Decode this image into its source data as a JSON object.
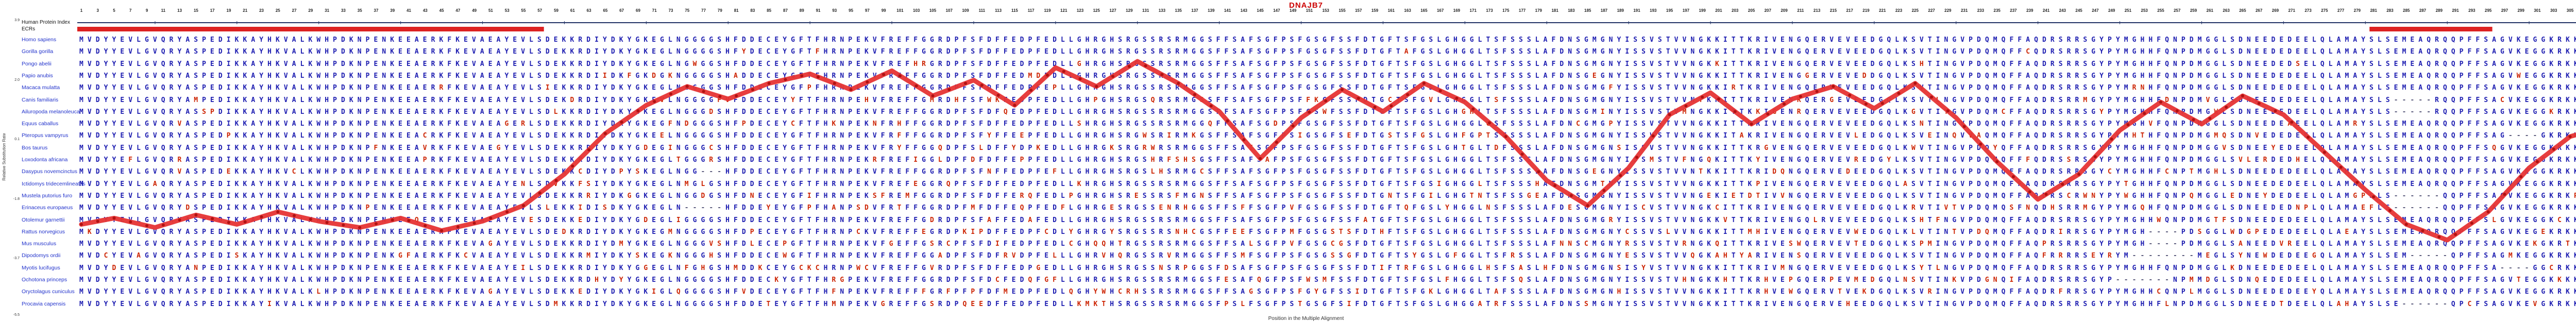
{
  "title": "DNAJB7",
  "colors": {
    "title": "#cc0000",
    "sequence": "#1b1bb0",
    "mutation": "#cc2200",
    "gap": "#555577",
    "species": "#2233cc",
    "curve": "#e63434",
    "curve_marker": "#b01212",
    "ecr": "#dd2222",
    "index_line": "#223366"
  },
  "left_panel": {
    "index_label": "Human Protein Index",
    "ecrs_label": "ECRs",
    "species": [
      {
        "name": "Homo sapiens",
        "divergence": 0,
        "gaps": []
      },
      {
        "name": "Gorilla gorilla",
        "divergence": 0.02,
        "gaps": []
      },
      {
        "name": "Pongo abelii",
        "divergence": 0.03,
        "gaps": []
      },
      {
        "name": "Papio anubis",
        "divergence": 0.05,
        "gaps": []
      },
      {
        "name": "Macaca mulatta",
        "divergence": 0.05,
        "gaps": []
      },
      {
        "name": "Canis familiaris",
        "divergence": 0.12,
        "gaps": [
          [
            284,
            288
          ]
        ]
      },
      {
        "name": "Ailuropoda melanoleuca",
        "divergence": 0.12,
        "gaps": [
          [
            284,
            288
          ]
        ]
      },
      {
        "name": "Equus caballus",
        "divergence": 0.11,
        "gaps": []
      },
      {
        "name": "Pteropus vampyrus",
        "divergence": 0.14,
        "gaps": [
          [
            298,
            301
          ]
        ]
      },
      {
        "name": "Bos taurus",
        "divergence": 0.14,
        "gaps": []
      },
      {
        "name": "Loxodonta africana",
        "divergence": 0.15,
        "gaps": []
      },
      {
        "name": "Dasypus novemcinctus",
        "divergence": 0.16,
        "gaps": [
          [
            77,
            79
          ]
        ]
      },
      {
        "name": "Ictidomys tridecemlineatus",
        "divergence": 0.15,
        "gaps": []
      },
      {
        "name": "Mustela putorius furo",
        "divergence": 0.13,
        "gaps": [
          [
            284,
            289
          ]
        ]
      },
      {
        "name": "Erinaceus europaeus",
        "divergence": 0.2,
        "gaps": [
          [
            75,
            79
          ],
          [
            284,
            289
          ]
        ]
      },
      {
        "name": "Otolemur garnettii",
        "divergence": 0.12,
        "gaps": []
      },
      {
        "name": "Rattus norvegicus",
        "divergence": 0.22,
        "gaps": [
          [
            254,
            257
          ]
        ]
      },
      {
        "name": "Mus musculus",
        "divergence": 0.22,
        "gaps": [
          [
            254,
            257
          ]
        ]
      },
      {
        "name": "Dipodomys ordii",
        "divergence": 0.2,
        "gaps": [
          [
            252,
            259
          ],
          [
            286,
            290
          ]
        ]
      },
      {
        "name": "Myotis lucifugus",
        "divergence": 0.16,
        "gaps": [
          [
            297,
            300
          ]
        ]
      },
      {
        "name": "Ochotona princeps",
        "divergence": 0.18,
        "gaps": [
          [
            250,
            256
          ]
        ]
      },
      {
        "name": "Oryctolagus cuniculus",
        "divergence": 0.15,
        "gaps": []
      },
      {
        "name": "Procavia capensis",
        "divergence": 0.16,
        "gaps": [
          [
            285,
            290
          ]
        ]
      }
    ]
  },
  "axes": {
    "y_label": "Relative Substitution Rate",
    "x_label": "Position in the Multiple Alignment",
    "y_ticks": [
      3.9,
      2.0,
      0.1,
      -1.8,
      -3.7,
      -5.5
    ],
    "x_ticks": {
      "start": 1,
      "end": 309,
      "step": 2
    }
  },
  "alignment": {
    "length": 309,
    "base_sequence": "MVDYYEVLGVQRYASPEDIKKAYHKVALKWHPDKNPENKEEAERKFKEVAEAYEVLSDEKKRDIYDKYGKEGLNGGGGSHFDDECEYGFTFHRNPEKVFREFFGGRDPFSFDFFEDPFEDLLGHRGHSRGSSRSRMGGSFFSAFSGFPSFGSGFSSFDTGFTSFGSLGHGGLTSFSSSLAFDNSGMGNYISSVSTVVNGKKITTKRIVENGQERVEVEEDGQLKSVTINGVPDQMQFFAQDRSRRSGYPYMGHHFQNPDMGGLSDNEEDEDEELQLAMAYSLSEMEAQRQQPFFSAGVKEGGKRKKANK",
    "amino_acids": "ARNDCQEGHILKMFPSTWYV"
  },
  "ecr_segments": [
    [
      1,
      57
    ],
    [
      281,
      295
    ]
  ],
  "chart_data": {
    "type": "line",
    "title": "DNAJB7",
    "xlabel": "Position in the Multiple Alignment",
    "ylabel": "Relative Substitution Rate",
    "ylim": [
      -5.5,
      3.9
    ],
    "xlim": [
      1,
      309
    ],
    "legend": null,
    "grid": false,
    "x": [
      1,
      5,
      10,
      15,
      20,
      25,
      30,
      35,
      40,
      45,
      50,
      55,
      60,
      65,
      70,
      75,
      80,
      85,
      90,
      95,
      100,
      105,
      110,
      115,
      120,
      125,
      130,
      135,
      140,
      145,
      150,
      155,
      160,
      165,
      170,
      175,
      180,
      185,
      190,
      195,
      200,
      205,
      210,
      215,
      220,
      225,
      230,
      235,
      240,
      245,
      250,
      255,
      260,
      265,
      270,
      275,
      280,
      285,
      290,
      295,
      300,
      305,
      309
    ],
    "values": [
      -2.6,
      -2.4,
      -2.7,
      -2.3,
      -2.6,
      -2.2,
      -2.5,
      -2.7,
      -2.4,
      -2.8,
      -2.5,
      -2.0,
      -1.0,
      0.3,
      1.2,
      1.8,
      1.4,
      1.9,
      2.2,
      1.7,
      2.3,
      1.5,
      2.0,
      1.2,
      2.4,
      1.8,
      2.6,
      1.9,
      1.0,
      -0.5,
      0.8,
      1.7,
      1.0,
      1.9,
      1.3,
      0.2,
      -1.2,
      -2.0,
      -0.8,
      0.9,
      1.6,
      0.6,
      1.4,
      1.8,
      1.1,
      1.9,
      0.8,
      -0.6,
      -1.8,
      -1.0,
      0.4,
      1.3,
      0.6,
      1.5,
      0.9,
      -0.3,
      -1.5,
      -2.6,
      -3.1,
      -2.2,
      -0.8,
      0.2,
      0.5
    ]
  }
}
